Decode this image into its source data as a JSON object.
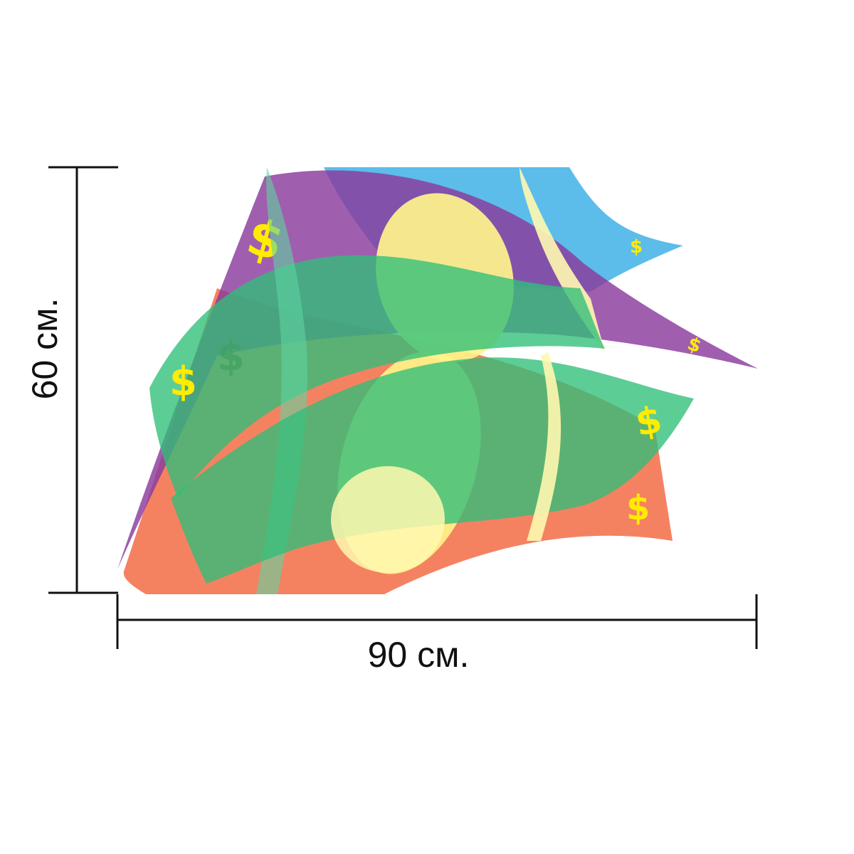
{
  "dimensions": {
    "width_label": "90 см.",
    "height_label": "60 см."
  },
  "artwork": {
    "symbol": "$",
    "colors": {
      "orange": "#f26c45",
      "purple": "#8b3a9e",
      "blue": "#3fb2e6",
      "green": "#2fbf78",
      "yellow": "#fff48a",
      "dollar": "#ffec00"
    }
  }
}
